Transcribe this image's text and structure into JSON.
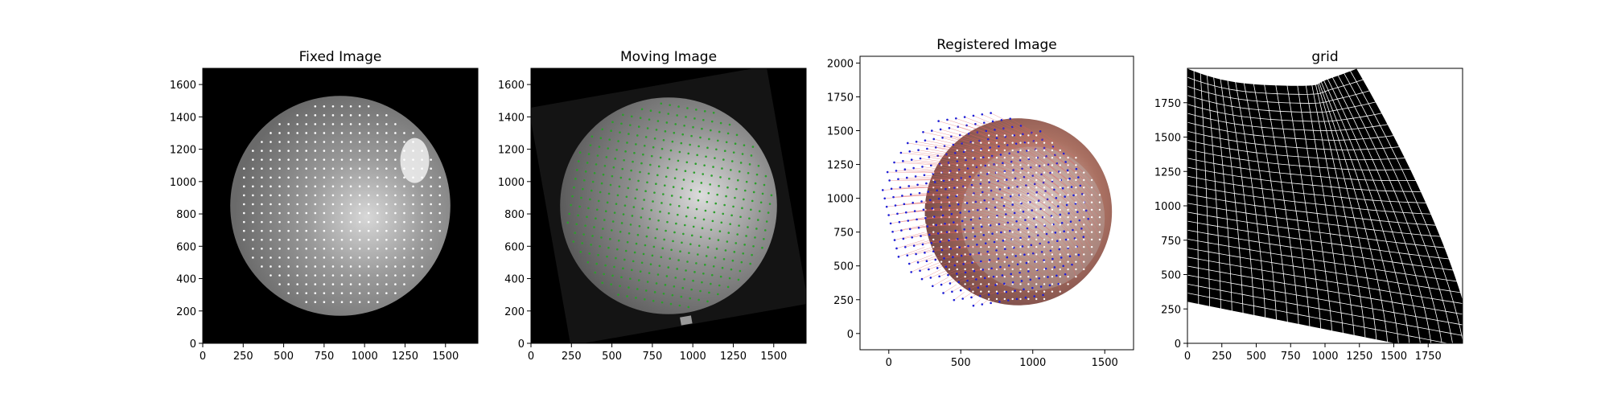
{
  "chart_data": [
    {
      "type": "image",
      "title": "Fixed Image",
      "xlim": [
        0,
        1700
      ],
      "ylim": [
        1700,
        0
      ],
      "xticks": [
        0,
        250,
        500,
        750,
        1000,
        1250,
        1500
      ],
      "yticks": [
        0,
        200,
        400,
        600,
        800,
        1000,
        1200,
        1400,
        1600
      ],
      "image": {
        "background": "#000000",
        "disc_center": [
          850,
          850
        ],
        "disc_radius": 680,
        "brightness": "gray"
      },
      "points": {
        "color": "#ffffff",
        "x_range": [
          200,
          1500
        ],
        "y_range": [
          200,
          1550
        ],
        "spacing": 55
      }
    },
    {
      "type": "image",
      "title": "Moving Image",
      "xlim": [
        0,
        1700
      ],
      "ylim": [
        1700,
        0
      ],
      "xticks": [
        0,
        250,
        500,
        750,
        1000,
        1250,
        1500
      ],
      "yticks": [
        0,
        200,
        400,
        600,
        800,
        1000,
        1200,
        1400,
        1600
      ],
      "image": {
        "background": "#000000",
        "disc_center": [
          850,
          850
        ],
        "disc_radius": 670,
        "brightness": "gray"
      },
      "points": {
        "color": "#2ca02c",
        "x_range": [
          200,
          1500
        ],
        "y_range": [
          200,
          1550
        ],
        "spacing": 55
      }
    },
    {
      "type": "image",
      "title": "Registered Image",
      "xlim": [
        -200,
        1700
      ],
      "ylim": [
        2050,
        -120
      ],
      "xticks": [
        0,
        500,
        1000,
        1500
      ],
      "yticks": [
        0,
        250,
        500,
        750,
        1000,
        1250,
        1500,
        1750,
        2000
      ],
      "image": {
        "background": "#000000",
        "extent": [
          0,
          1700,
          0,
          1700
        ],
        "tint": "red-blue overlay"
      },
      "points": [
        {
          "name": "fixed",
          "color": "#ffffff"
        },
        {
          "name": "warped",
          "color": "#1f1fd6"
        },
        {
          "name": "displacement",
          "color": "#e06060"
        }
      ]
    },
    {
      "type": "grid",
      "title": "grid",
      "xlim": [
        0,
        2000
      ],
      "ylim": [
        2000,
        0
      ],
      "xticks": [
        0,
        250,
        500,
        750,
        1000,
        1250,
        1500,
        1750
      ],
      "yticks": [
        0,
        250,
        500,
        750,
        1000,
        1250,
        1500,
        1750
      ],
      "line_color": "#ffffff",
      "fill_color": "#000000"
    }
  ]
}
